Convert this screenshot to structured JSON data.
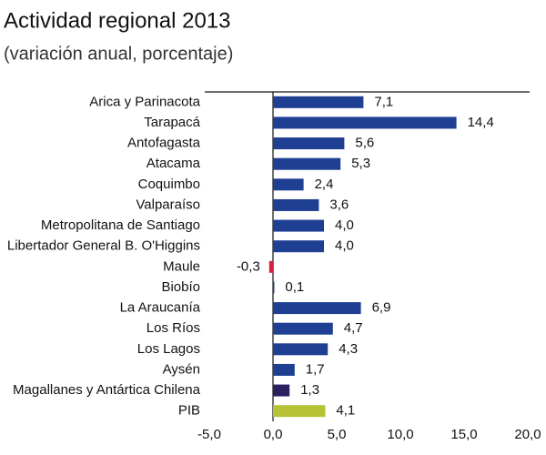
{
  "chart_data": {
    "type": "hbar",
    "title": "Actividad regional 2013",
    "subtitle": "(variación anual, porcentaje)",
    "categories": [
      "Arica y Parinacota",
      "Tarapacá",
      "Antofagasta",
      "Atacama",
      "Coquimbo",
      "Valparaíso",
      "Metropolitana de Santiago",
      "Libertador General B. O'Higgins",
      "Maule",
      "Biobío",
      "La Araucanía",
      "Los Ríos",
      "Los Lagos",
      "Aysén",
      "Magallanes y Antártica Chilena",
      "PIB"
    ],
    "values": [
      7.1,
      14.4,
      5.6,
      5.3,
      2.4,
      3.6,
      4.0,
      4.0,
      -0.3,
      0.1,
      6.9,
      4.7,
      4.3,
      1.7,
      1.3,
      4.1
    ],
    "value_labels": [
      "7,1",
      "14,4",
      "5,6",
      "5,3",
      "2,4",
      "3,6",
      "4,0",
      "4,0",
      "-0,3",
      "0,1",
      "6,9",
      "4,7",
      "4,3",
      "1,7",
      "1,3",
      "4,1"
    ],
    "colors": [
      "#1f3f93",
      "#1f3f93",
      "#1f3f93",
      "#1f3f93",
      "#1f3f93",
      "#1f3f93",
      "#1f3f93",
      "#1f3f93",
      "#d4213d",
      "#1f3f93",
      "#1f3f93",
      "#1f3f93",
      "#1f3f93",
      "#1f3f93",
      "#2b2160",
      "#b7c234"
    ],
    "xlim": [
      -5,
      20
    ],
    "xticks": [
      {
        "value": -5,
        "label": "-5,0"
      },
      {
        "value": 0,
        "label": "0,0"
      },
      {
        "value": 5,
        "label": "5,0"
      },
      {
        "value": 10,
        "label": "10,0"
      },
      {
        "value": 15,
        "label": "15,0"
      },
      {
        "value": 20,
        "label": "20,0"
      }
    ]
  }
}
